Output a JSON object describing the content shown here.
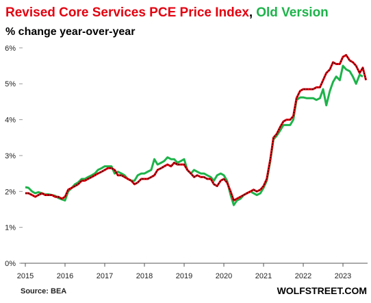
{
  "chart_data": {
    "type": "line",
    "title_parts": [
      "Revised Core Services PCE Price Index",
      ",",
      "Old Version"
    ],
    "title_colors": [
      "#e3000f",
      "#000000",
      "#1db34a"
    ],
    "subtitle": "% change year-over-year",
    "source": "Source: BEA",
    "brand": "WOLFSTREET.COM",
    "x": [
      2015,
      2015.08,
      2015.17,
      2015.25,
      2015.33,
      2015.42,
      2015.5,
      2015.58,
      2015.67,
      2015.75,
      2015.83,
      2015.92,
      2016,
      2016.08,
      2016.17,
      2016.25,
      2016.33,
      2016.42,
      2016.5,
      2016.58,
      2016.67,
      2016.75,
      2016.83,
      2016.92,
      2017,
      2017.08,
      2017.17,
      2017.25,
      2017.33,
      2017.42,
      2017.5,
      2017.58,
      2017.67,
      2017.75,
      2017.83,
      2017.92,
      2018,
      2018.08,
      2018.17,
      2018.25,
      2018.33,
      2018.42,
      2018.5,
      2018.58,
      2018.67,
      2018.75,
      2018.83,
      2018.92,
      2019,
      2019.08,
      2019.17,
      2019.25,
      2019.33,
      2019.42,
      2019.5,
      2019.58,
      2019.67,
      2019.75,
      2019.83,
      2019.92,
      2020,
      2020.08,
      2020.17,
      2020.25,
      2020.33,
      2020.42,
      2020.5,
      2020.58,
      2020.67,
      2020.75,
      2020.83,
      2020.92,
      2021,
      2021.08,
      2021.17,
      2021.25,
      2021.33,
      2021.42,
      2021.5,
      2021.58,
      2021.67,
      2021.75,
      2021.83,
      2021.92,
      2022,
      2022.08,
      2022.17,
      2022.25,
      2022.33,
      2022.42,
      2022.5,
      2022.58,
      2022.67,
      2022.75,
      2022.83,
      2022.92,
      2023,
      2023.08,
      2023.17,
      2023.25,
      2023.33,
      2023.42,
      2023.5,
      2023.58
    ],
    "series": [
      {
        "name": "Old Version",
        "color": "#1db34a",
        "values": [
          2.12,
          2.1,
          2.0,
          1.95,
          1.98,
          1.95,
          1.92,
          1.92,
          1.9,
          1.88,
          1.82,
          1.78,
          1.75,
          2.0,
          2.1,
          2.2,
          2.25,
          2.35,
          2.35,
          2.4,
          2.45,
          2.5,
          2.6,
          2.65,
          2.7,
          2.7,
          2.7,
          2.5,
          2.55,
          2.5,
          2.45,
          2.35,
          2.3,
          2.3,
          2.45,
          2.5,
          2.5,
          2.55,
          2.6,
          2.9,
          2.75,
          2.8,
          2.85,
          2.95,
          2.9,
          2.9,
          2.8,
          2.85,
          2.9,
          2.6,
          2.5,
          2.6,
          2.55,
          2.5,
          2.5,
          2.45,
          2.4,
          2.3,
          2.45,
          2.5,
          2.45,
          2.3,
          1.9,
          1.62,
          1.75,
          1.8,
          1.9,
          1.95,
          2.0,
          1.95,
          1.9,
          1.95,
          2.1,
          2.3,
          2.85,
          3.45,
          3.55,
          3.7,
          3.85,
          3.85,
          3.85,
          4.0,
          4.55,
          4.62,
          4.62,
          4.6,
          4.6,
          4.6,
          4.55,
          4.6,
          4.85,
          4.4,
          4.8,
          5.05,
          5.2,
          5.1,
          5.5,
          5.4,
          5.35,
          5.2,
          5.0,
          5.25,
          5.2,
          null
        ]
      },
      {
        "name": "Revised Core Services PCE Price Index",
        "color": "#e3000f",
        "values": [
          1.95,
          1.95,
          1.9,
          1.85,
          1.9,
          1.95,
          1.9,
          1.9,
          1.9,
          1.85,
          1.85,
          1.8,
          1.85,
          2.05,
          2.1,
          2.15,
          2.2,
          2.3,
          2.3,
          2.35,
          2.4,
          2.45,
          2.5,
          2.55,
          2.6,
          2.65,
          2.65,
          2.6,
          2.45,
          2.45,
          2.4,
          2.35,
          2.3,
          2.2,
          2.25,
          2.35,
          2.35,
          2.35,
          2.4,
          2.45,
          2.6,
          2.65,
          2.7,
          2.75,
          2.7,
          2.8,
          2.75,
          2.75,
          2.75,
          2.6,
          2.5,
          2.4,
          2.45,
          2.4,
          2.4,
          2.35,
          2.35,
          2.2,
          2.15,
          2.3,
          2.35,
          2.25,
          2.0,
          1.75,
          1.8,
          1.85,
          1.9,
          1.95,
          2.0,
          2.05,
          2.0,
          2.05,
          2.15,
          2.35,
          2.9,
          3.5,
          3.6,
          3.8,
          3.95,
          4.0,
          4.0,
          4.1,
          4.6,
          4.8,
          4.85,
          4.85,
          4.85,
          4.85,
          4.9,
          4.9,
          5.1,
          5.3,
          5.4,
          5.6,
          5.55,
          5.55,
          5.75,
          5.8,
          5.65,
          5.6,
          5.5,
          5.3,
          5.45,
          5.1
        ]
      }
    ],
    "xlim": [
      2015,
      2023.62
    ],
    "xticks": [
      2015,
      2016,
      2017,
      2018,
      2019,
      2020,
      2021,
      2022,
      2023
    ],
    "ylim": [
      0,
      6.15
    ],
    "yticks": [
      {
        "value": 0,
        "label": "0%"
      },
      {
        "value": 1,
        "label": "1%"
      },
      {
        "value": 2,
        "label": "2%"
      },
      {
        "value": 3,
        "label": "3%"
      },
      {
        "value": 4,
        "label": "4%"
      },
      {
        "value": 5,
        "label": "5%"
      },
      {
        "value": 6,
        "label": "6%"
      }
    ],
    "grid": false
  }
}
